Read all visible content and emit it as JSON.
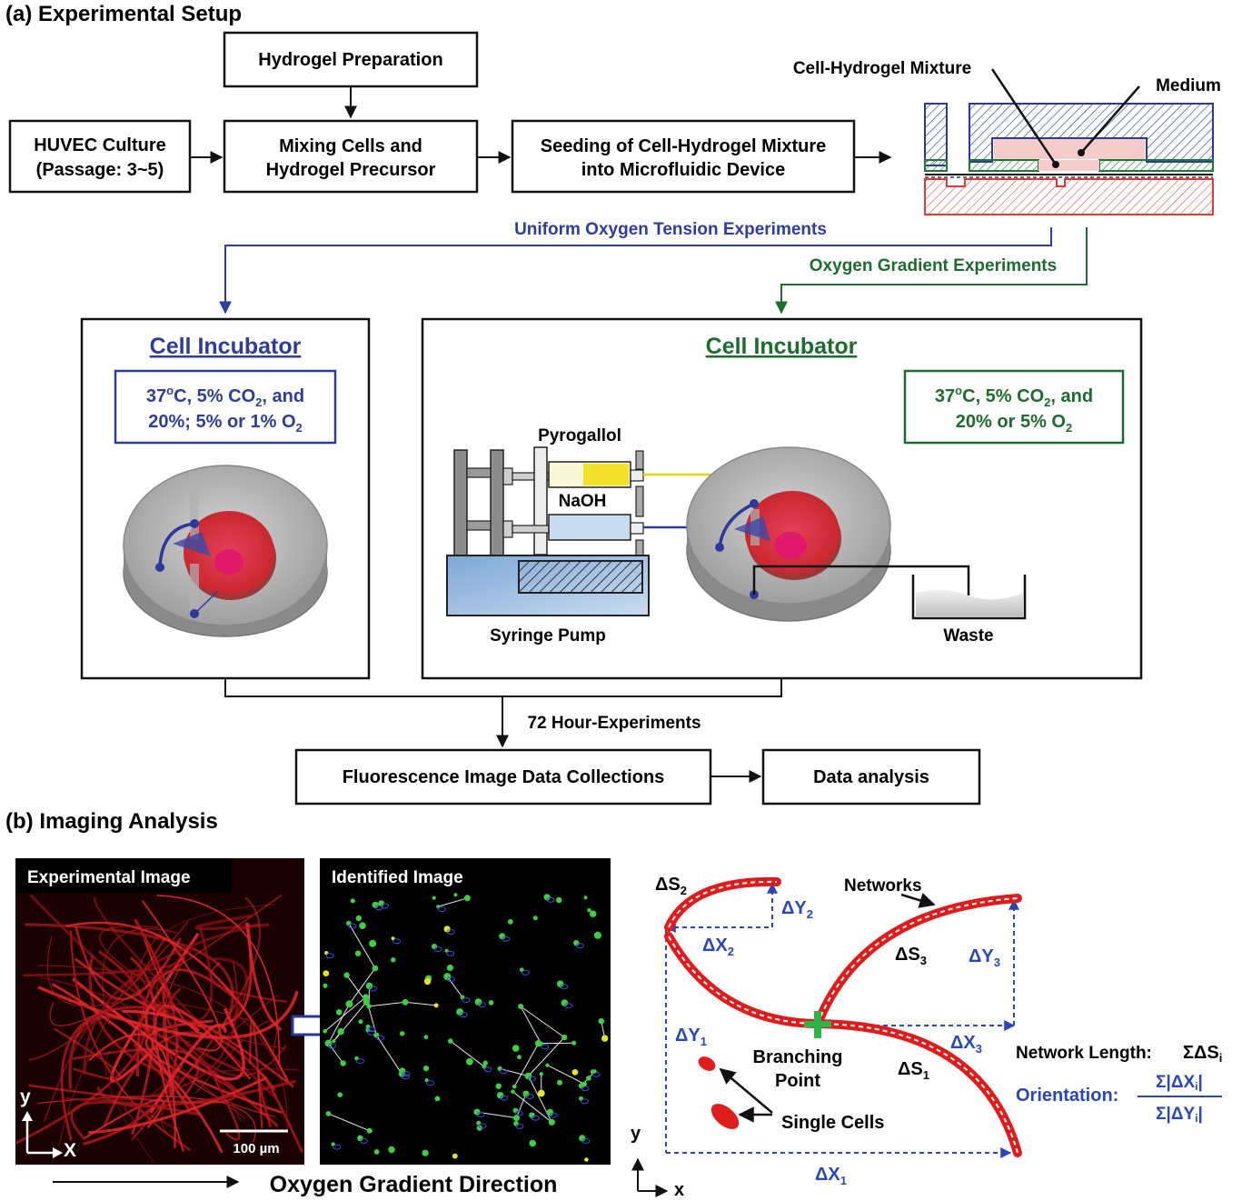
{
  "section_a": {
    "title": "(a) Experimental Setup",
    "hydrogel_prep": "Hydrogel Preparation",
    "huvec_line1": "HUVEC Culture",
    "huvec_line2": "(Passage: 3~5)",
    "mixing_line1": "Mixing Cells and",
    "mixing_line2": "Hydrogel Precursor",
    "seeding_line1": "Seeding of Cell-Hydrogel Mixture",
    "seeding_line2": "into Microfluidic Device",
    "device_label_mixture": "Cell-Hydrogel Mixture",
    "device_label_medium": "Medium",
    "uniform_label": "Uniform Oxygen Tension Experiments",
    "gradient_label": "Oxygen Gradient Experiments",
    "incubator_left": {
      "title": "Cell Incubator",
      "cond1_a": "37",
      "cond1_sup": "o",
      "cond1_b": "C, 5% CO",
      "cond1_sub": "2",
      "cond1_c": ", and",
      "cond2_a": "20%; 5% or 1% O",
      "cond2_sub": "2"
    },
    "incubator_right": {
      "title": "Cell Incubator",
      "cond1_a": "37",
      "cond1_sup": "o",
      "cond1_b": "C, 5% CO",
      "cond1_sub": "2",
      "cond1_c": ", and",
      "cond2_a": "20% or 5% O",
      "cond2_sub": "2",
      "pyrogallol": "Pyrogallol",
      "naoh": "NaOH",
      "syringe_pump": "Syringe Pump",
      "waste": "Waste"
    },
    "duration": "72 Hour-Experiments",
    "fluorescence": "Fluorescence Image Data Collections",
    "data_analysis": "Data analysis"
  },
  "section_b": {
    "title": "(b) Imaging Analysis",
    "experimental_image": "Experimental Image",
    "identified_image": "Identified Image",
    "axis_y": "y",
    "axis_x": "X",
    "scale_bar": "100 µm",
    "gradient_direction": "Oxygen Gradient Direction",
    "schematic": {
      "ds2_main": "ΔS",
      "ds2_sub": "2",
      "dy2_main": "ΔY",
      "dy2_sub": "2",
      "dx2_main": "ΔX",
      "dx2_sub": "2",
      "networks": "Networks",
      "ds3_main": "ΔS",
      "ds3_sub": "3",
      "dy3_main": "ΔY",
      "dy3_sub": "3",
      "dy1_main": "ΔY",
      "dy1_sub": "1",
      "dx3_main": "ΔX",
      "dx3_sub": "3",
      "ds1_main": "ΔS",
      "ds1_sub": "1",
      "dx1_main": "ΔX",
      "dx1_sub": "1",
      "branching_line1": "Branching",
      "branching_line2": "Point",
      "single_cells": "Single Cells",
      "network_length_label": "Network Length:",
      "network_length_formula": "ΣΔS",
      "network_length_sub": "i",
      "orientation_label": "Orientation:",
      "orientation_num": "Σ|ΔX",
      "orientation_num_sub": "i",
      "orientation_num_end": "|",
      "orientation_den": "Σ|ΔY",
      "orientation_den_sub": "i",
      "orientation_den_end": "|",
      "axis_y": "y",
      "axis_x": "x"
    }
  },
  "colors": {
    "blue_label": "#2d3d9a",
    "green_label": "#1e6b2e",
    "network_red": "#e01b1b",
    "dashed_blue": "#2a47b8",
    "syringe_yellow": "#f2e12a",
    "device_blue": "#2b3a9a",
    "device_green": "#1e7a34",
    "device_red": "#e23a3a"
  }
}
